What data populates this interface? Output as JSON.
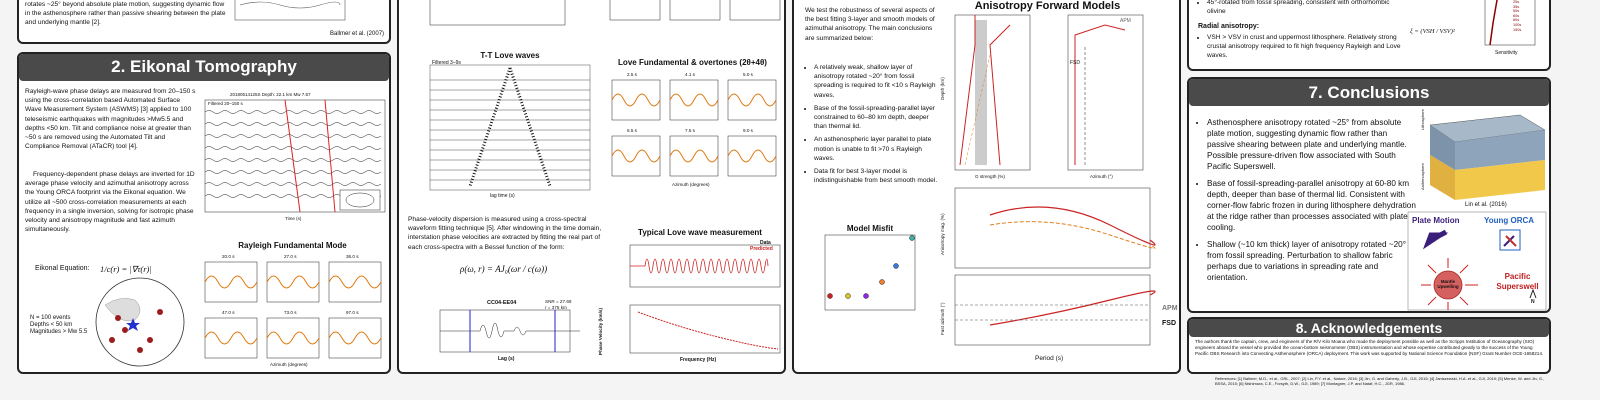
{
  "section1": {
    "text": "rotates ~25° beyond absolute plate motion, suggesting dynamic flow in the asthenosphere rather than passive shearing between the plate and underlying mantle [2].",
    "credit": "Ballmer et al. (2007)"
  },
  "section2": {
    "title": "2. Eikonal Tomography",
    "paragraphs": [
      "Rayleigh-wave phase delays are measured from 20–150 s using the cross-correlation based Automated Surface Wave Measurement System (ASWMS) [3] applied to 100 teleseismic earthquakes with magnitudes >Mw5.5 and depths <50 km. Tilt and compliance noise at greater than ~50 s are removed using the Automated Tilt and Compliance Removal (ATaCR) tool [4].",
      "Frequency-dependent phase delays are inverted for 1D average phase velocity and azimuthal anisotropy across the Young ORCA footprint via the Eikonal equation. We utilize all ~500 cross-correlation measurements at each frequency in a single inversion, solving for isotropic phase velocity and anisotropy magnitude and fast azimuth simultaneously."
    ],
    "equation_label": "Eikonal Equation:",
    "equation": "1/c(r) = |∇τ(r)|",
    "map_note": [
      "N = 100 events",
      "Depths < 50 km",
      "Magnitudes > Mw 5.5"
    ],
    "event_label": "20180514125S  Depth: 22.1 km  Mw 7.57",
    "filter_label": "Filtered 20–150 s",
    "time_label": "Time (s)",
    "figure_title": "Rayleigh Fundamental Mode",
    "panel_titles": [
      "20.0 s",
      "27.0 s",
      "36.0 s",
      "47.0 s",
      "73.0 s",
      "97.0 s"
    ],
    "azimuth_label": "Azimuth (degrees)"
  },
  "section3": {
    "tt_title": "T-T Love waves",
    "tt_filter": "Filtered 3–9s",
    "lag_label": "lag time (s)",
    "love_title": "Love Fundamental & overtones (2θ+4θ)",
    "panel_titles": [
      "2.5 s",
      "4.1 s",
      "5.0 s",
      "6.5 s",
      "7.5 s",
      "9.0 s"
    ],
    "azimuth_label": "Azimuth (degrees)",
    "paragraph": "Phase-velocity dispersion is measured using a cross-spectral waveform fitting technique [5]. After windowing in the time domain, interstation phase velocities are extracted by fitting the real part of each cross-spectra with a Bessel function of the form:",
    "equation": "ρ(ω, r) = AJ₀(ωr / c(ω))",
    "station": "CC04-EE04",
    "snr": "SNR = 27.69",
    "distance": "r = 375 km",
    "lag_axis": "Lag (s)",
    "measure_title": "Typical Love wave measurement",
    "legend": [
      "Data",
      "Predicted"
    ],
    "freq_label": "Frequency (Hz)",
    "velocity_label": "Phase Velocity (km/s)"
  },
  "section4": {
    "intro": "We test the robustness of several aspects of the best fitting 3-layer and smooth models of azimuthal anisotropy. The main conclusions are summarized below:",
    "bullets": [
      "A relatively weak, shallow layer of anisotropy rotated ~20° from fossil spreading is required to fit <10 s Rayleigh waves.",
      "Base of the fossil-spreading-parallel layer constrained to 60–80 km depth, deeper than thermal lid.",
      "An asthenospheric layer parallel to plate motion is unable to fit >70 s Rayleigh waves.",
      "Data fit for best 3-layer model is indistinguishable from best smooth model."
    ],
    "misfit_title": "Model Misfit",
    "forward_title": "Anisotropy Forward Models",
    "apm": "APM",
    "fsd": "FSD",
    "depth_label": "Depth (km)",
    "strength_label": "G strength (%)",
    "azimuth_label": "Azimuth (°)",
    "mag_label": "Anisotropy mag. (%)",
    "fast_label": "Fast azimuth (°)",
    "period_label": "Period (s)"
  },
  "section5": {
    "top_bullet": "45°-rotated from fossil spreading, consistent with orthorhombic olivine",
    "radial_title": "Radial anisotropy:",
    "radial_bullet": "VSH > VSV in crust and uppermost lithosphere. Relatively strong crustal anisotropy required to fit high frequency Rayleigh and Love waves.",
    "xi": "ξ = (VSH / VSV)²",
    "sensitivity": "Sensitivity",
    "periods": [
      "25s",
      "35s",
      "50s",
      "60s",
      "80s",
      "100s",
      "150s"
    ]
  },
  "conclusions": {
    "title": "7. Conclusions",
    "bullets": [
      "Asthenosphere anisotropy rotated ~25° from absolute plate motion, suggesting dynamic flow rather than passive shearing between plate and underlying mantle. Possible pressure-driven flow associated with South Pacific Superswell.",
      "Base of fossil-spreading-parallel anisotropy at 60-80 km depth, deeper than base of thermal lid. Consistent with corner-flow fabric frozen in during lithosphere dehydration at the ridge rather than processes associated with plate cooling.",
      "Shallow (~10 km thick) layer of anisotropy rotated ~20° from fossil spreading. Perturbation to shallow fabric perhaps due to variations in spreading rate and orientation."
    ],
    "credit": "Lin et al. (2016)",
    "lithosphere": "Lithosphere",
    "asthenosphere": "Asthenosphere",
    "plate_motion": "Plate Motion",
    "young_orca": "Young ORCA",
    "upwelling": "Mantle Upwelling",
    "superswell": "Pacific Superswell",
    "north": "N"
  },
  "acknowledgements": {
    "title": "8. Acknowledgements",
    "text": "The authors thank the captain, crew, and engineers of the R/V Kilo Moana who made the deployment possible as well as the Scripps Institution of Oceanography (SIO) engineers aboard the vessel who provided the ocean-bottom seismometer (OBS) instrumentation and whose expertise contributed greatly to the success of the Young Pacific OBS Research into Convecting Asthenosphere (ORCA) deployment. This work was supported by National Science Foundation (NSF) Grant Number OCE-1658214.",
    "references": "References: [1] Ballmer, M.D., et al., GRL, 2007;  [2] Lin, P.Y. et al., Nature, 2016;  [3] Jin, G. and Gaherty, J.B., GJI, 2015;  [4] Janiszewski, H.A. et al., GJI, 2019;  [5] Menke, W. and Jin, G., BSSA, 2015;  [6] Nishimura, C.E., Forsyth, D.W., GJI, 1989;  [7] Montagner, J.P. and Nataf, H.C., JGR, 1986."
  }
}
